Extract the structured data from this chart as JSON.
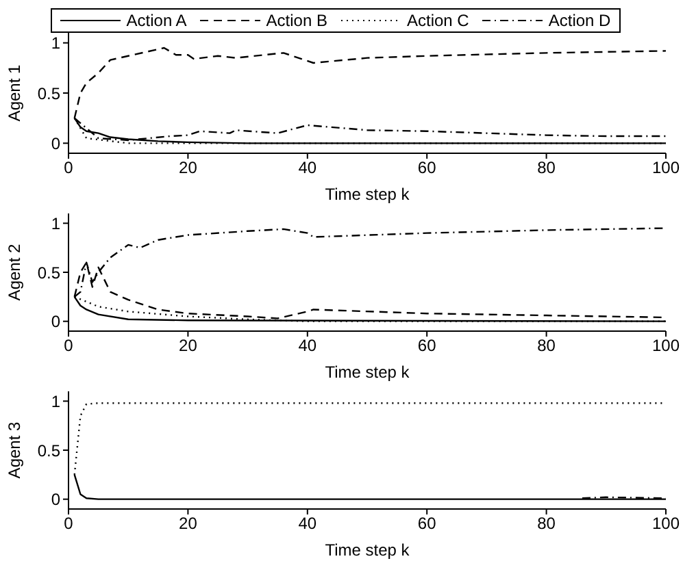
{
  "chart_data": [
    {
      "type": "line",
      "legend": "top",
      "ylabel": "Agent 1",
      "xlabel": "Time step k",
      "xlim": [
        0,
        100
      ],
      "xticks": [
        0,
        20,
        40,
        60,
        80,
        100
      ],
      "ylim": [
        -0.1,
        1.1
      ],
      "yticks": [
        0,
        0.5,
        1
      ],
      "series": [
        {
          "name": "Action A",
          "color": "#000000",
          "line_style": "solid",
          "x": [
            1,
            2,
            3,
            4,
            5,
            7,
            10,
            15,
            20,
            30,
            40,
            60,
            80,
            100
          ],
          "values": [
            0.25,
            0.16,
            0.12,
            0.11,
            0.1,
            0.06,
            0.04,
            0.02,
            0.01,
            0,
            0,
            0,
            0,
            0
          ]
        },
        {
          "name": "Action B",
          "color": "#000000",
          "line_style": "dashed",
          "x": [
            1,
            2,
            3,
            5,
            7,
            10,
            16,
            18,
            20,
            21,
            25,
            28,
            36,
            41,
            50,
            60,
            80,
            100
          ],
          "values": [
            0.25,
            0.5,
            0.6,
            0.7,
            0.83,
            0.87,
            0.95,
            0.88,
            0.88,
            0.84,
            0.87,
            0.85,
            0.9,
            0.8,
            0.85,
            0.87,
            0.9,
            0.92
          ]
        },
        {
          "name": "Action C",
          "color": "#000000",
          "line_style": "dotted",
          "x": [
            1,
            3,
            10,
            100
          ],
          "values": [
            0.25,
            0.05,
            0,
            0
          ]
        },
        {
          "name": "Action D",
          "color": "#000000",
          "line_style": "dashdot",
          "x": [
            1,
            5,
            10,
            17,
            20,
            22,
            27,
            28,
            35,
            40,
            50,
            60,
            80,
            90,
            100
          ],
          "values": [
            0.25,
            0.05,
            0.03,
            0.07,
            0.08,
            0.12,
            0.1,
            0.13,
            0.1,
            0.18,
            0.13,
            0.12,
            0.08,
            0.07,
            0.07
          ]
        }
      ]
    },
    {
      "type": "line",
      "ylabel": "Agent 2",
      "xlabel": "Time step k",
      "xlim": [
        0,
        100
      ],
      "xticks": [
        0,
        20,
        40,
        60,
        80,
        100
      ],
      "ylim": [
        -0.1,
        1.1
      ],
      "yticks": [
        0,
        0.5,
        1
      ],
      "series": [
        {
          "color": "#000000",
          "line_style": "solid",
          "x": [
            1,
            2,
            3,
            5,
            10,
            20,
            100
          ],
          "values": [
            0.25,
            0.16,
            0.12,
            0.07,
            0.02,
            0.01,
            0
          ]
        },
        {
          "color": "#000000",
          "line_style": "dashed",
          "x": [
            1,
            2,
            3,
            4,
            5,
            7,
            10,
            15,
            20,
            30,
            35,
            40,
            41,
            60,
            80,
            100
          ],
          "values": [
            0.25,
            0.5,
            0.6,
            0.35,
            0.55,
            0.3,
            0.22,
            0.12,
            0.08,
            0.05,
            0.03,
            0.1,
            0.12,
            0.08,
            0.06,
            0.04
          ]
        },
        {
          "color": "#000000",
          "line_style": "dotted",
          "x": [
            1,
            5,
            10,
            20,
            30,
            35,
            40,
            100
          ],
          "values": [
            0.25,
            0.15,
            0.1,
            0.05,
            0.02,
            0.01,
            0,
            0
          ]
        },
        {
          "color": "#000000",
          "line_style": "dashdot",
          "x": [
            1,
            2,
            3,
            4,
            5,
            7,
            10,
            12,
            15,
            20,
            30,
            36,
            40,
            41,
            60,
            80,
            100
          ],
          "values": [
            0.25,
            0.3,
            0.6,
            0.4,
            0.5,
            0.65,
            0.78,
            0.75,
            0.83,
            0.88,
            0.92,
            0.94,
            0.9,
            0.86,
            0.9,
            0.93,
            0.95
          ]
        }
      ]
    },
    {
      "type": "line",
      "ylabel": "Agent 3",
      "xlabel": "Time step k",
      "xlim": [
        0,
        100
      ],
      "xticks": [
        0,
        20,
        40,
        60,
        80,
        100
      ],
      "ylim": [
        -0.1,
        1.1
      ],
      "yticks": [
        0,
        0.5,
        1
      ],
      "series": [
        {
          "color": "#000000",
          "line_style": "solid",
          "x": [
            1,
            2,
            3,
            5,
            10,
            100
          ],
          "values": [
            0.25,
            0.05,
            0.01,
            0,
            0,
            0
          ]
        },
        {
          "color": "#000000",
          "line_style": "dotted",
          "x": [
            1,
            2,
            3,
            5,
            100
          ],
          "values": [
            0.25,
            0.85,
            0.97,
            0.98,
            0.98
          ]
        },
        {
          "color": "#000000",
          "line_style": "dashdot",
          "x": [
            86,
            90,
            100
          ],
          "values": [
            0.01,
            0.02,
            0.01
          ]
        }
      ]
    }
  ]
}
